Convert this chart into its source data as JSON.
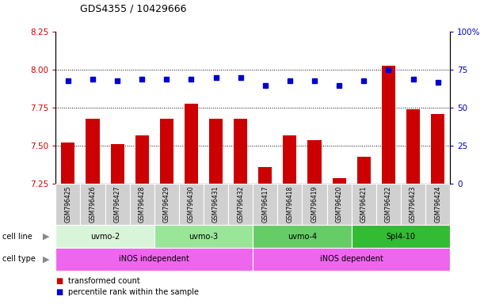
{
  "title": "GDS4355 / 10429666",
  "samples": [
    "GSM796425",
    "GSM796426",
    "GSM796427",
    "GSM796428",
    "GSM796429",
    "GSM796430",
    "GSM796431",
    "GSM796432",
    "GSM796417",
    "GSM796418",
    "GSM796419",
    "GSM796420",
    "GSM796421",
    "GSM796422",
    "GSM796423",
    "GSM796424"
  ],
  "bar_values": [
    7.52,
    7.68,
    7.51,
    7.57,
    7.68,
    7.78,
    7.68,
    7.68,
    7.36,
    7.57,
    7.54,
    7.29,
    7.43,
    8.03,
    7.74,
    7.71
  ],
  "dot_values": [
    68,
    69,
    68,
    69,
    69,
    69,
    70,
    70,
    65,
    68,
    68,
    65,
    68,
    75,
    69,
    67
  ],
  "ylim_left": [
    7.25,
    8.25
  ],
  "ylim_right": [
    0,
    100
  ],
  "yticks_left": [
    7.25,
    7.5,
    7.75,
    8.0,
    8.25
  ],
  "yticks_right": [
    0,
    25,
    50,
    75,
    100
  ],
  "gridlines": [
    7.5,
    7.75,
    8.0
  ],
  "bar_color": "#cc0000",
  "dot_color": "#0000cc",
  "cell_line_groups": [
    {
      "label": "uvmo-2",
      "start": 0,
      "end": 3,
      "color": "#d9f5d9"
    },
    {
      "label": "uvmo-3",
      "start": 4,
      "end": 7,
      "color": "#99e699"
    },
    {
      "label": "uvmo-4",
      "start": 8,
      "end": 11,
      "color": "#66cc66"
    },
    {
      "label": "Spl4-10",
      "start": 12,
      "end": 15,
      "color": "#33bb33"
    }
  ],
  "cell_type_groups": [
    {
      "label": "iNOS independent",
      "start": 0,
      "end": 7,
      "color": "#ee66ee"
    },
    {
      "label": "iNOS dependent",
      "start": 8,
      "end": 15,
      "color": "#ee66ee"
    }
  ],
  "legend_items": [
    {
      "label": "transformed count",
      "color": "#cc0000"
    },
    {
      "label": "percentile rank within the sample",
      "color": "#0000cc"
    }
  ],
  "background_color": "#ffffff",
  "plot_bg_color": "#ffffff",
  "tick_label_color_left": "#cc0000",
  "tick_label_color_right": "#0000cc",
  "bar_width": 0.55,
  "label_box_color": "#d0d0d0",
  "arrow_color": "#888888"
}
